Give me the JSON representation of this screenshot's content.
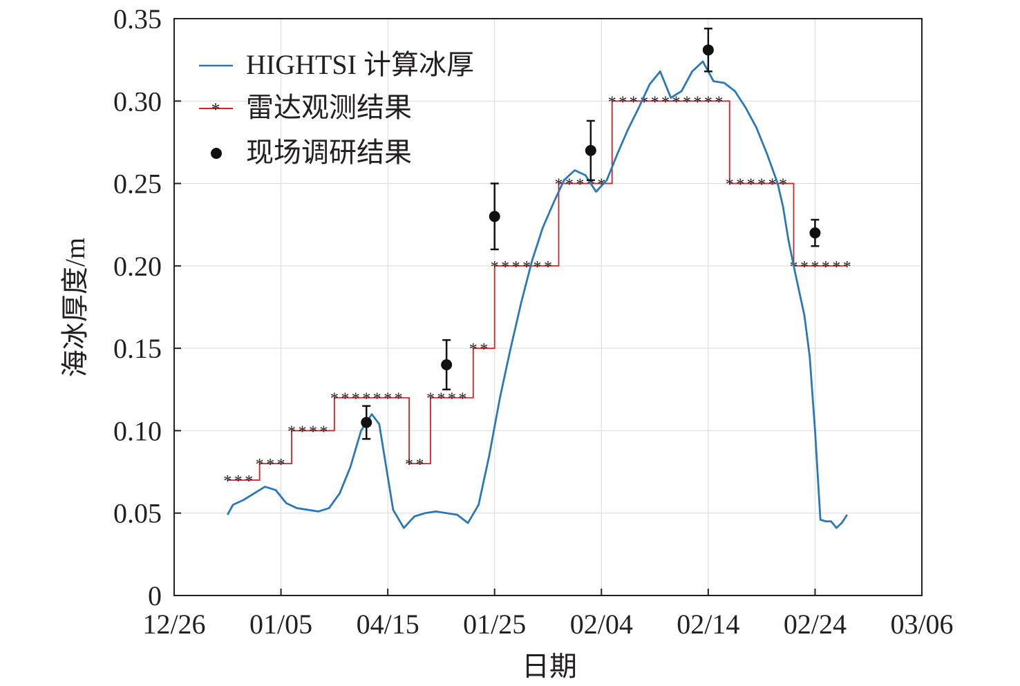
{
  "chart_data": {
    "type": "line",
    "title": "",
    "xlabel": "日期",
    "ylabel": "海冰厚度/m",
    "x_tick_labels": [
      "12/26",
      "01/05",
      "04/15",
      "01/25",
      "02/04",
      "02/14",
      "02/24",
      "03/06"
    ],
    "y_tick_labels": [
      "0",
      "0.05",
      "0.10",
      "0.15",
      "0.20",
      "0.25",
      "0.30",
      "0.35"
    ],
    "xlim": [
      0,
      70
    ],
    "ylim": [
      0,
      0.35
    ],
    "grid": true,
    "legend_position": "top-left",
    "colors": {
      "model": "#2a78b8",
      "radar": "#d62027",
      "field": "#111111",
      "grid": "#d9d9d9",
      "axis": "#231f20"
    },
    "series": [
      {
        "name": "HIGHTSI 计算冰厚",
        "kind": "line",
        "x": [
          5.0,
          5.5,
          6.5,
          7.5,
          8.5,
          9.5,
          10.5,
          11.5,
          12.5,
          13.5,
          14.5,
          15.5,
          16.5,
          17.5,
          18.5,
          19.2,
          19.8,
          20.5,
          21.5,
          22.5,
          23.5,
          24.5,
          25.5,
          26.5,
          27.5,
          28.5,
          29.5,
          30.5,
          31.5,
          32.5,
          33.5,
          34.5,
          35.5,
          36.5,
          37.5,
          38.5,
          39.5,
          40.5,
          41.5,
          42.5,
          43.5,
          44.5,
          45.5,
          46.5,
          47.5,
          48.5,
          49.5,
          50.5,
          51.5,
          52.5,
          53.5,
          54.5,
          55.5,
          56.5,
          57.0,
          57.5,
          58.0,
          58.5,
          59.0,
          59.5,
          60.0,
          60.5,
          61.0,
          61.5,
          62.0,
          62.5,
          63.0
        ],
        "y": [
          0.049,
          0.055,
          0.058,
          0.062,
          0.066,
          0.064,
          0.056,
          0.053,
          0.052,
          0.051,
          0.053,
          0.062,
          0.078,
          0.1,
          0.11,
          0.104,
          0.08,
          0.052,
          0.041,
          0.048,
          0.05,
          0.051,
          0.05,
          0.049,
          0.044,
          0.055,
          0.085,
          0.12,
          0.15,
          0.178,
          0.203,
          0.223,
          0.238,
          0.252,
          0.258,
          0.255,
          0.245,
          0.252,
          0.268,
          0.283,
          0.296,
          0.31,
          0.318,
          0.302,
          0.306,
          0.318,
          0.324,
          0.312,
          0.311,
          0.306,
          0.296,
          0.284,
          0.268,
          0.25,
          0.236,
          0.216,
          0.2,
          0.185,
          0.17,
          0.145,
          0.1,
          0.046,
          0.045,
          0.045,
          0.041,
          0.044,
          0.049
        ]
      },
      {
        "name": "雷达观测结果",
        "kind": "step",
        "x": [
          5,
          6,
          7,
          8,
          9,
          10,
          11,
          12,
          13,
          14,
          15,
          16,
          17,
          18,
          19,
          20,
          21,
          22,
          23,
          24,
          25,
          26,
          27,
          28,
          29,
          30,
          31,
          32,
          33,
          34,
          35,
          36,
          37,
          38,
          39,
          40,
          41,
          42,
          43,
          44,
          45,
          46,
          47,
          48,
          49,
          50,
          51,
          52,
          53,
          54,
          55,
          56,
          57,
          58,
          59,
          60,
          61,
          62,
          63
        ],
        "y": [
          0.07,
          0.07,
          0.07,
          0.08,
          0.08,
          0.08,
          0.1,
          0.1,
          0.1,
          0.1,
          0.12,
          0.12,
          0.12,
          0.12,
          0.12,
          0.12,
          0.12,
          0.08,
          0.08,
          0.12,
          0.12,
          0.12,
          0.12,
          0.15,
          0.15,
          0.2,
          0.2,
          0.2,
          0.2,
          0.2,
          0.2,
          0.25,
          0.25,
          0.25,
          0.25,
          0.25,
          0.3,
          0.3,
          0.3,
          0.3,
          0.3,
          0.3,
          0.3,
          0.3,
          0.3,
          0.3,
          0.3,
          0.25,
          0.25,
          0.25,
          0.25,
          0.25,
          0.25,
          0.2,
          0.2,
          0.2,
          0.2,
          0.2,
          0.2
        ]
      },
      {
        "name": "现场调研结果",
        "kind": "points",
        "points": [
          {
            "x": 18.0,
            "y": 0.105,
            "err": 0.01
          },
          {
            "x": 25.5,
            "y": 0.14,
            "err": 0.015
          },
          {
            "x": 30.0,
            "y": 0.23,
            "err": 0.02
          },
          {
            "x": 39.0,
            "y": 0.27,
            "err": 0.018
          },
          {
            "x": 50.0,
            "y": 0.331,
            "err": 0.013
          },
          {
            "x": 60.0,
            "y": 0.22,
            "err": 0.008
          }
        ]
      }
    ]
  }
}
